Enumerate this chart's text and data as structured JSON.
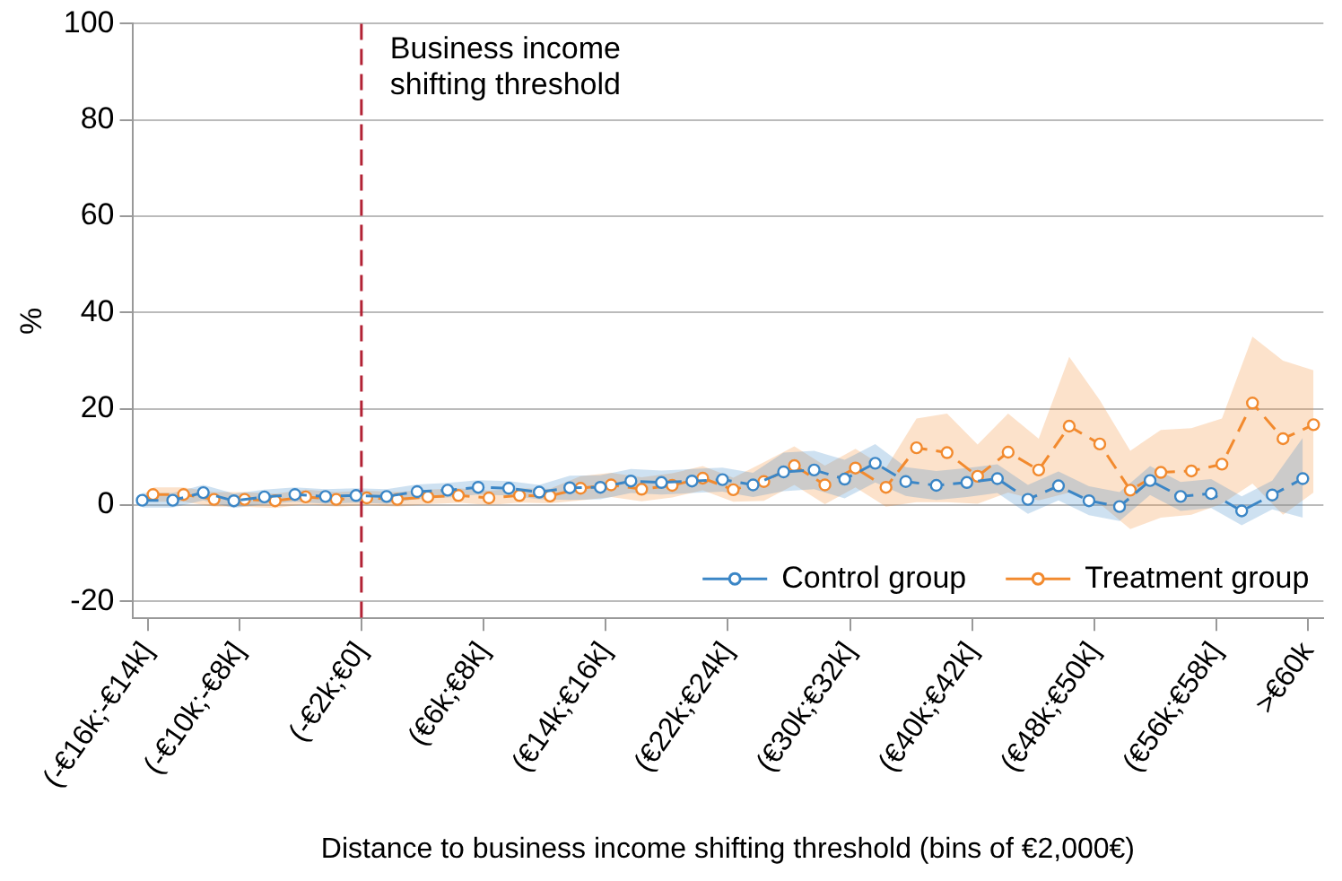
{
  "chart_data": {
    "type": "line",
    "xlabel": "Distance to business income shifting threshold (bins of €2,000€)",
    "ylabel": "%",
    "categories": [
      "(-€16k;-€14k]",
      null,
      null,
      "(-€10k;-€8k]",
      null,
      null,
      null,
      "(-€2k;€0]",
      null,
      null,
      null,
      "(€6k;€8k]",
      null,
      null,
      null,
      "(€14k;€16k]",
      null,
      null,
      null,
      "(€22k;€24k]",
      null,
      null,
      null,
      "(€30k;€32k]",
      null,
      null,
      null,
      "(€40k;€42k]",
      null,
      null,
      null,
      "(€48k;€50k]",
      null,
      null,
      null,
      "(€56k;€58k]",
      null,
      null,
      ">€60k"
    ],
    "series": [
      {
        "name": "Control group",
        "color": "#3b86c6",
        "values": [
          1.0,
          1.0,
          2.6,
          0.9,
          1.7,
          2.2,
          1.8,
          2.0,
          1.8,
          2.8,
          3.1,
          3.7,
          3.5,
          2.7,
          3.6,
          3.7,
          5.0,
          4.7,
          5.0,
          5.3,
          4.2,
          6.9,
          7.3,
          5.4,
          8.7,
          4.9,
          4.1,
          4.7,
          5.5,
          1.2,
          4.0,
          0.9,
          -0.3,
          5.1,
          1.8,
          2.4,
          -1.2,
          2.1,
          5.5
        ],
        "lower": [
          -0.5,
          -0.5,
          1.0,
          -0.6,
          0.2,
          0.7,
          0.3,
          0.5,
          0.3,
          1.3,
          1.6,
          2.2,
          2.0,
          1.2,
          1.1,
          1.2,
          2.5,
          2.2,
          2.5,
          2.8,
          1.7,
          2.9,
          3.3,
          1.4,
          4.7,
          1.9,
          1.1,
          1.7,
          2.5,
          -1.8,
          1.0,
          -2.1,
          -3.3,
          2.1,
          -1.2,
          -0.6,
          -4.2,
          -0.9,
          -2.6
        ],
        "upper": [
          2.5,
          2.5,
          4.2,
          2.4,
          3.2,
          3.7,
          3.3,
          3.5,
          3.3,
          4.3,
          4.6,
          5.2,
          5.0,
          4.2,
          6.1,
          6.2,
          7.5,
          7.2,
          7.5,
          7.8,
          6.7,
          10.9,
          11.3,
          9.4,
          12.7,
          7.9,
          7.1,
          7.7,
          8.5,
          4.2,
          7.0,
          3.9,
          2.7,
          8.1,
          4.8,
          5.4,
          1.8,
          5.1,
          14.0
        ]
      },
      {
        "name": "Treatment group",
        "color": "#f28a2e",
        "values": [
          2.2,
          2.2,
          1.2,
          1.2,
          0.9,
          1.7,
          1.2,
          1.5,
          1.2,
          1.7,
          2.0,
          1.5,
          2.0,
          1.9,
          3.5,
          4.2,
          3.3,
          4.1,
          5.6,
          3.2,
          4.9,
          8.2,
          4.2,
          7.7,
          3.7,
          11.9,
          10.9,
          6.0,
          11.0,
          7.3,
          16.4,
          12.7,
          3.1,
          6.8,
          7.1,
          8.5,
          21.2,
          13.8,
          16.7
        ],
        "lower": [
          0.7,
          0.7,
          -0.3,
          -0.3,
          -0.6,
          0.2,
          -0.3,
          0.0,
          -0.3,
          0.2,
          0.5,
          0.0,
          0.5,
          0.4,
          1.0,
          1.7,
          0.8,
          1.6,
          3.1,
          0.7,
          0.9,
          4.2,
          0.2,
          3.7,
          -0.3,
          0.6,
          0.6,
          0.3,
          2.6,
          1.0,
          2.6,
          0.3,
          -5.0,
          -2.6,
          -2.0,
          0.3,
          4.5,
          -2.0,
          2.6
        ],
        "upper": [
          3.7,
          3.7,
          2.7,
          2.7,
          2.4,
          3.2,
          2.7,
          3.0,
          2.7,
          3.2,
          3.5,
          3.0,
          3.5,
          3.4,
          6.0,
          6.7,
          5.8,
          6.6,
          8.1,
          5.7,
          8.9,
          12.2,
          8.2,
          11.7,
          7.7,
          18.0,
          19.0,
          12.6,
          19.0,
          13.8,
          30.8,
          21.8,
          11.3,
          15.6,
          16.0,
          18.0,
          35.0,
          30.0,
          28.0
        ]
      }
    ],
    "ylim": [
      -23.5,
      100
    ],
    "yticks": [
      -20,
      0,
      20,
      40,
      60,
      80,
      100
    ],
    "grid": "y",
    "legend": "bottom right",
    "marker": "circle",
    "line_style": "dashed",
    "ref_lines": [
      {
        "axis": "x",
        "value": "(-€2k;€0]",
        "label": "Business income shifting threshold",
        "color": "#b22234",
        "line_style": "dashed"
      }
    ]
  }
}
